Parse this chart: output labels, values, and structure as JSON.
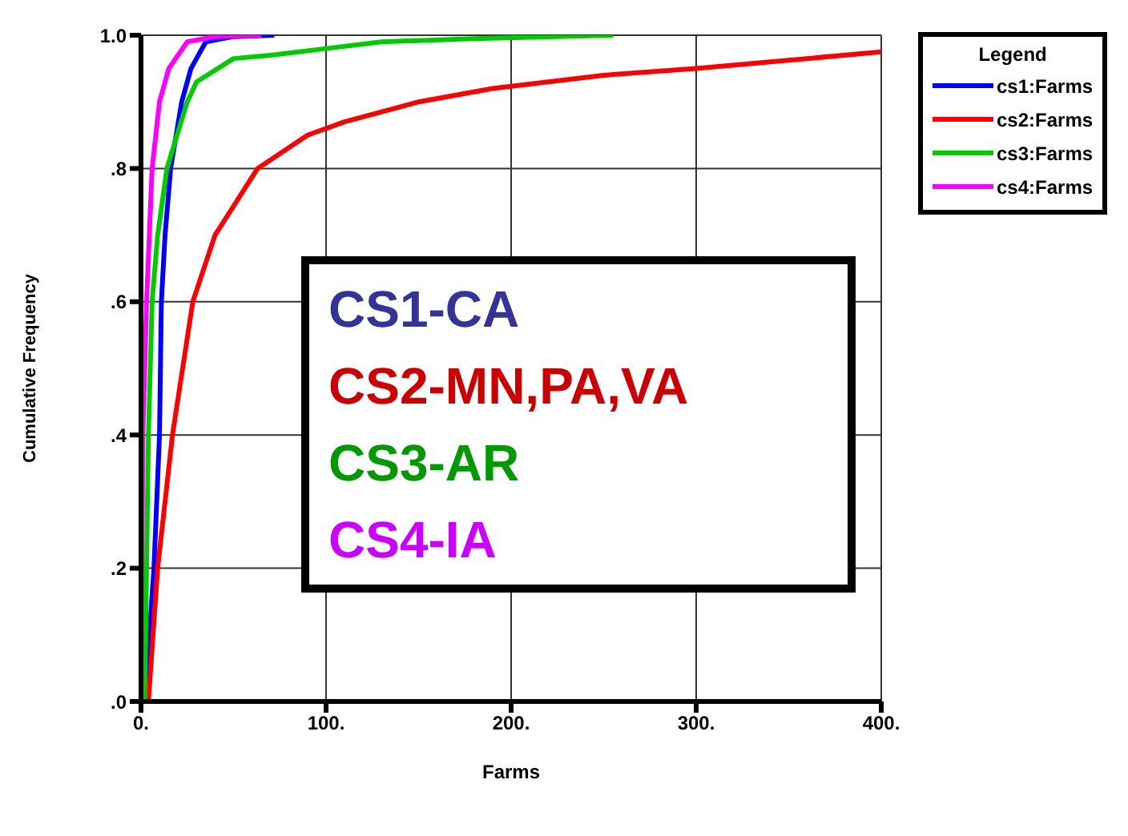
{
  "chart_data": {
    "type": "line",
    "xlabel": "Farms",
    "ylabel": "Cumulative Frequency",
    "legend_title": "Legend",
    "legend": "right",
    "grid": true,
    "marker": "none",
    "line_style": "solid",
    "xlim": [
      0,
      400
    ],
    "ylim": [
      0,
      1
    ],
    "xticks": [
      {
        "value": 0,
        "label": "0."
      },
      {
        "value": 100,
        "label": "100."
      },
      {
        "value": 200,
        "label": "200."
      },
      {
        "value": 300,
        "label": "300."
      },
      {
        "value": 400,
        "label": "400."
      }
    ],
    "yticks": [
      {
        "value": 0,
        "label": ".0"
      },
      {
        "value": 0.2,
        "label": ".2"
      },
      {
        "value": 0.4,
        "label": ".4"
      },
      {
        "value": 0.6,
        "label": ".6"
      },
      {
        "value": 0.8,
        "label": ".8"
      },
      {
        "value": 1,
        "label": "1.0"
      }
    ],
    "series": [
      {
        "name": "cs1:Farms",
        "color": "#0000ff",
        "x": [
          2,
          7,
          10,
          11,
          13,
          16,
          22,
          27,
          35,
          50,
          72
        ],
        "values": [
          0,
          0.2,
          0.4,
          0.6,
          0.7,
          0.8,
          0.9,
          0.95,
          0.99,
          0.998,
          1
        ]
      },
      {
        "name": "cs2:Farms",
        "color": "#ff0000",
        "x": [
          4,
          9,
          17,
          28,
          40,
          63,
          90,
          110,
          150,
          190,
          250,
          300,
          340,
          400
        ],
        "values": [
          0,
          0.2,
          0.4,
          0.6,
          0.7,
          0.8,
          0.85,
          0.87,
          0.9,
          0.92,
          0.94,
          0.95,
          0.96,
          0.975
        ]
      },
      {
        "name": "cs3:Farms",
        "color": "#00cc00",
        "x": [
          2,
          4,
          6,
          9,
          14,
          25,
          30,
          50,
          70,
          100,
          130,
          180,
          255
        ],
        "values": [
          0,
          0.4,
          0.6,
          0.7,
          0.8,
          0.9,
          0.93,
          0.965,
          0.97,
          0.98,
          0.99,
          0.995,
          1
        ]
      },
      {
        "name": "cs4:Farms",
        "color": "#ff00ff",
        "x": [
          0,
          1,
          3,
          6,
          10,
          15,
          25,
          40,
          65
        ],
        "values": [
          0,
          0.4,
          0.6,
          0.8,
          0.9,
          0.95,
          0.99,
          0.998,
          1
        ]
      }
    ],
    "annotations": [
      "CS1-CA",
      "CS2-MN,PA,VA",
      "CS3-AR",
      "CS4-IA"
    ]
  }
}
